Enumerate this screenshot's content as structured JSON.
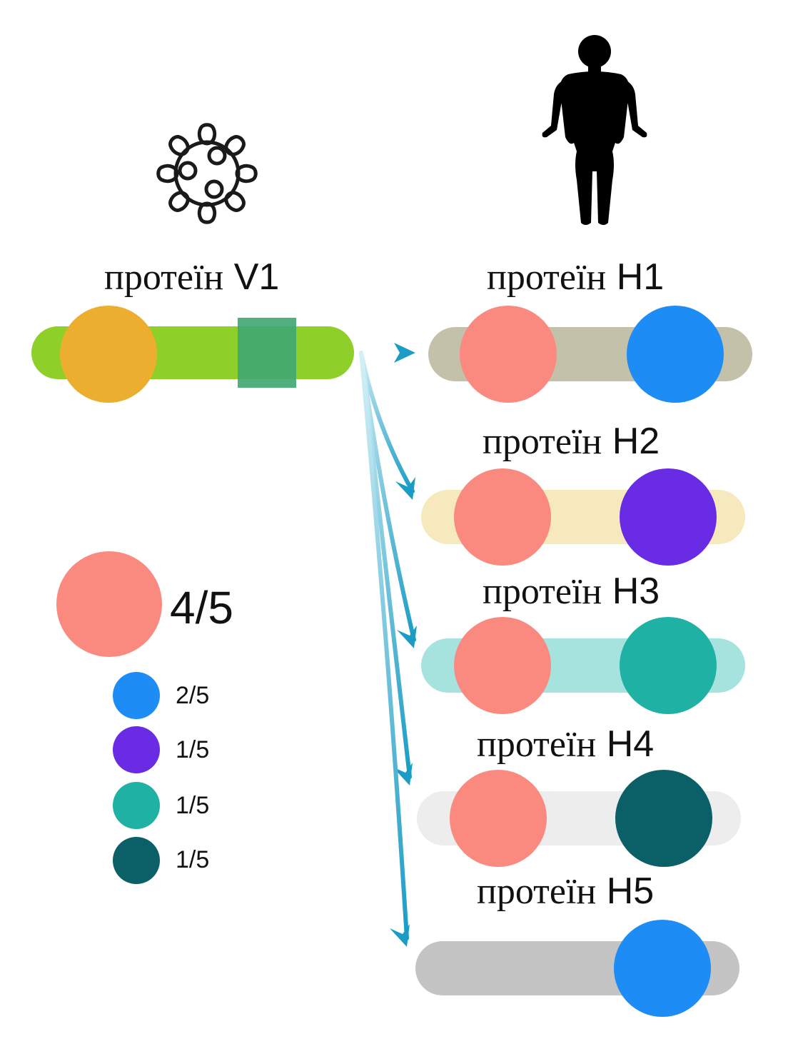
{
  "virus_protein": {
    "label_word": "протеїн",
    "label_id": "V1",
    "bar_color": "#8ECF2A",
    "domain_circle_color": "#EBAE2E",
    "domain_square_color": "#3FA772"
  },
  "human_proteins": [
    {
      "label_word": "протеїн",
      "label_id": "H1",
      "bar_color": "#C4C1AB",
      "left_circle_color": "#FA8A80",
      "right_circle_color": "#1E8CF5"
    },
    {
      "label_word": "протеїн",
      "label_id": "H2",
      "bar_color": "#F7E9BE",
      "left_circle_color": "#FA8A80",
      "right_circle_color": "#6A2BE4"
    },
    {
      "label_word": "протеїн",
      "label_id": "H3",
      "bar_color": "#A6E3DF",
      "left_circle_color": "#FA8A80",
      "right_circle_color": "#20B1A5"
    },
    {
      "label_word": "протеїн",
      "label_id": "H4",
      "bar_color": "#EDEDED",
      "left_circle_color": "#FA8A80",
      "right_circle_color": "#0B5F66"
    },
    {
      "label_word": "протеїн",
      "label_id": "H5",
      "bar_color": "#C4C4C4",
      "left_circle_color": null,
      "right_circle_color": "#1E8CF5"
    }
  ],
  "legend": {
    "main": {
      "color": "#FA8A80",
      "fraction": "4/5"
    },
    "items": [
      {
        "color": "#1E8CF5",
        "fraction": "2/5"
      },
      {
        "color": "#6A2BE4",
        "fraction": "1/5"
      },
      {
        "color": "#20B1A5",
        "fraction": "1/5"
      },
      {
        "color": "#0B5F66",
        "fraction": "1/5"
      }
    ]
  },
  "icons": {
    "virus": "virus-icon",
    "human": "human-silhouette-icon"
  },
  "arrow_color": "#1A9CC4"
}
